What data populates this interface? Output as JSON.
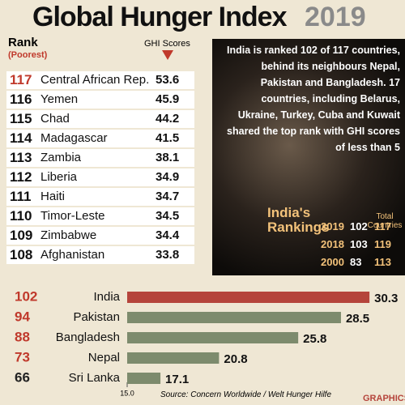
{
  "title": "Global Hunger Index",
  "year": "2019",
  "rank_header": "Rank",
  "rank_subheader": "(Poorest)",
  "score_header": "GHI Scores",
  "table": {
    "rows": [
      [
        117,
        "Central African Rep.",
        53.6
      ],
      [
        116,
        "Yemen",
        45.9
      ],
      [
        115,
        "Chad",
        44.2
      ],
      [
        114,
        "Madagascar",
        41.5
      ],
      [
        113,
        "Zambia",
        38.1
      ],
      [
        112,
        "Liberia",
        34.9
      ],
      [
        111,
        "Haiti",
        34.7
      ],
      [
        110,
        "Timor-Leste",
        34.5
      ],
      [
        109,
        "Zimbabwe",
        34.4
      ],
      [
        108,
        "Afghanistan",
        33.8
      ]
    ]
  },
  "callout": "India is ranked 102 of 117 countries, behind its neighbours Nepal, Pakistan and Bangladesh. 17 countries, including Belarus, Ukraine, Turkey, Cuba and Kuwait shared the top rank with GHI scores of less than 5",
  "india_rankings": {
    "title": "India's Rankings",
    "total_header": "Total Countries",
    "rows": [
      [
        2019,
        102,
        117
      ],
      [
        2018,
        103,
        119
      ],
      [
        2000,
        83,
        113
      ]
    ]
  },
  "chart_data": {
    "type": "bar",
    "orientation": "horizontal",
    "ranks": [
      102,
      94,
      88,
      73,
      66
    ],
    "categories": [
      "India",
      "Pakistan",
      "Bangladesh",
      "Nepal",
      "Sri Lanka"
    ],
    "values": [
      30.3,
      28.5,
      25.8,
      20.8,
      17.1
    ],
    "colors": [
      "#b5443b",
      "#7d8b6d",
      "#7d8b6d",
      "#7d8b6d",
      "#7d8b6d"
    ],
    "xlim": [
      15,
      30.6
    ],
    "xticks": [
      {
        "value": 15,
        "label": "15.0"
      }
    ]
  },
  "source": "Source: Concern Worldwide / Welt Hunger Hilfe",
  "credit": "GRAPHICS"
}
